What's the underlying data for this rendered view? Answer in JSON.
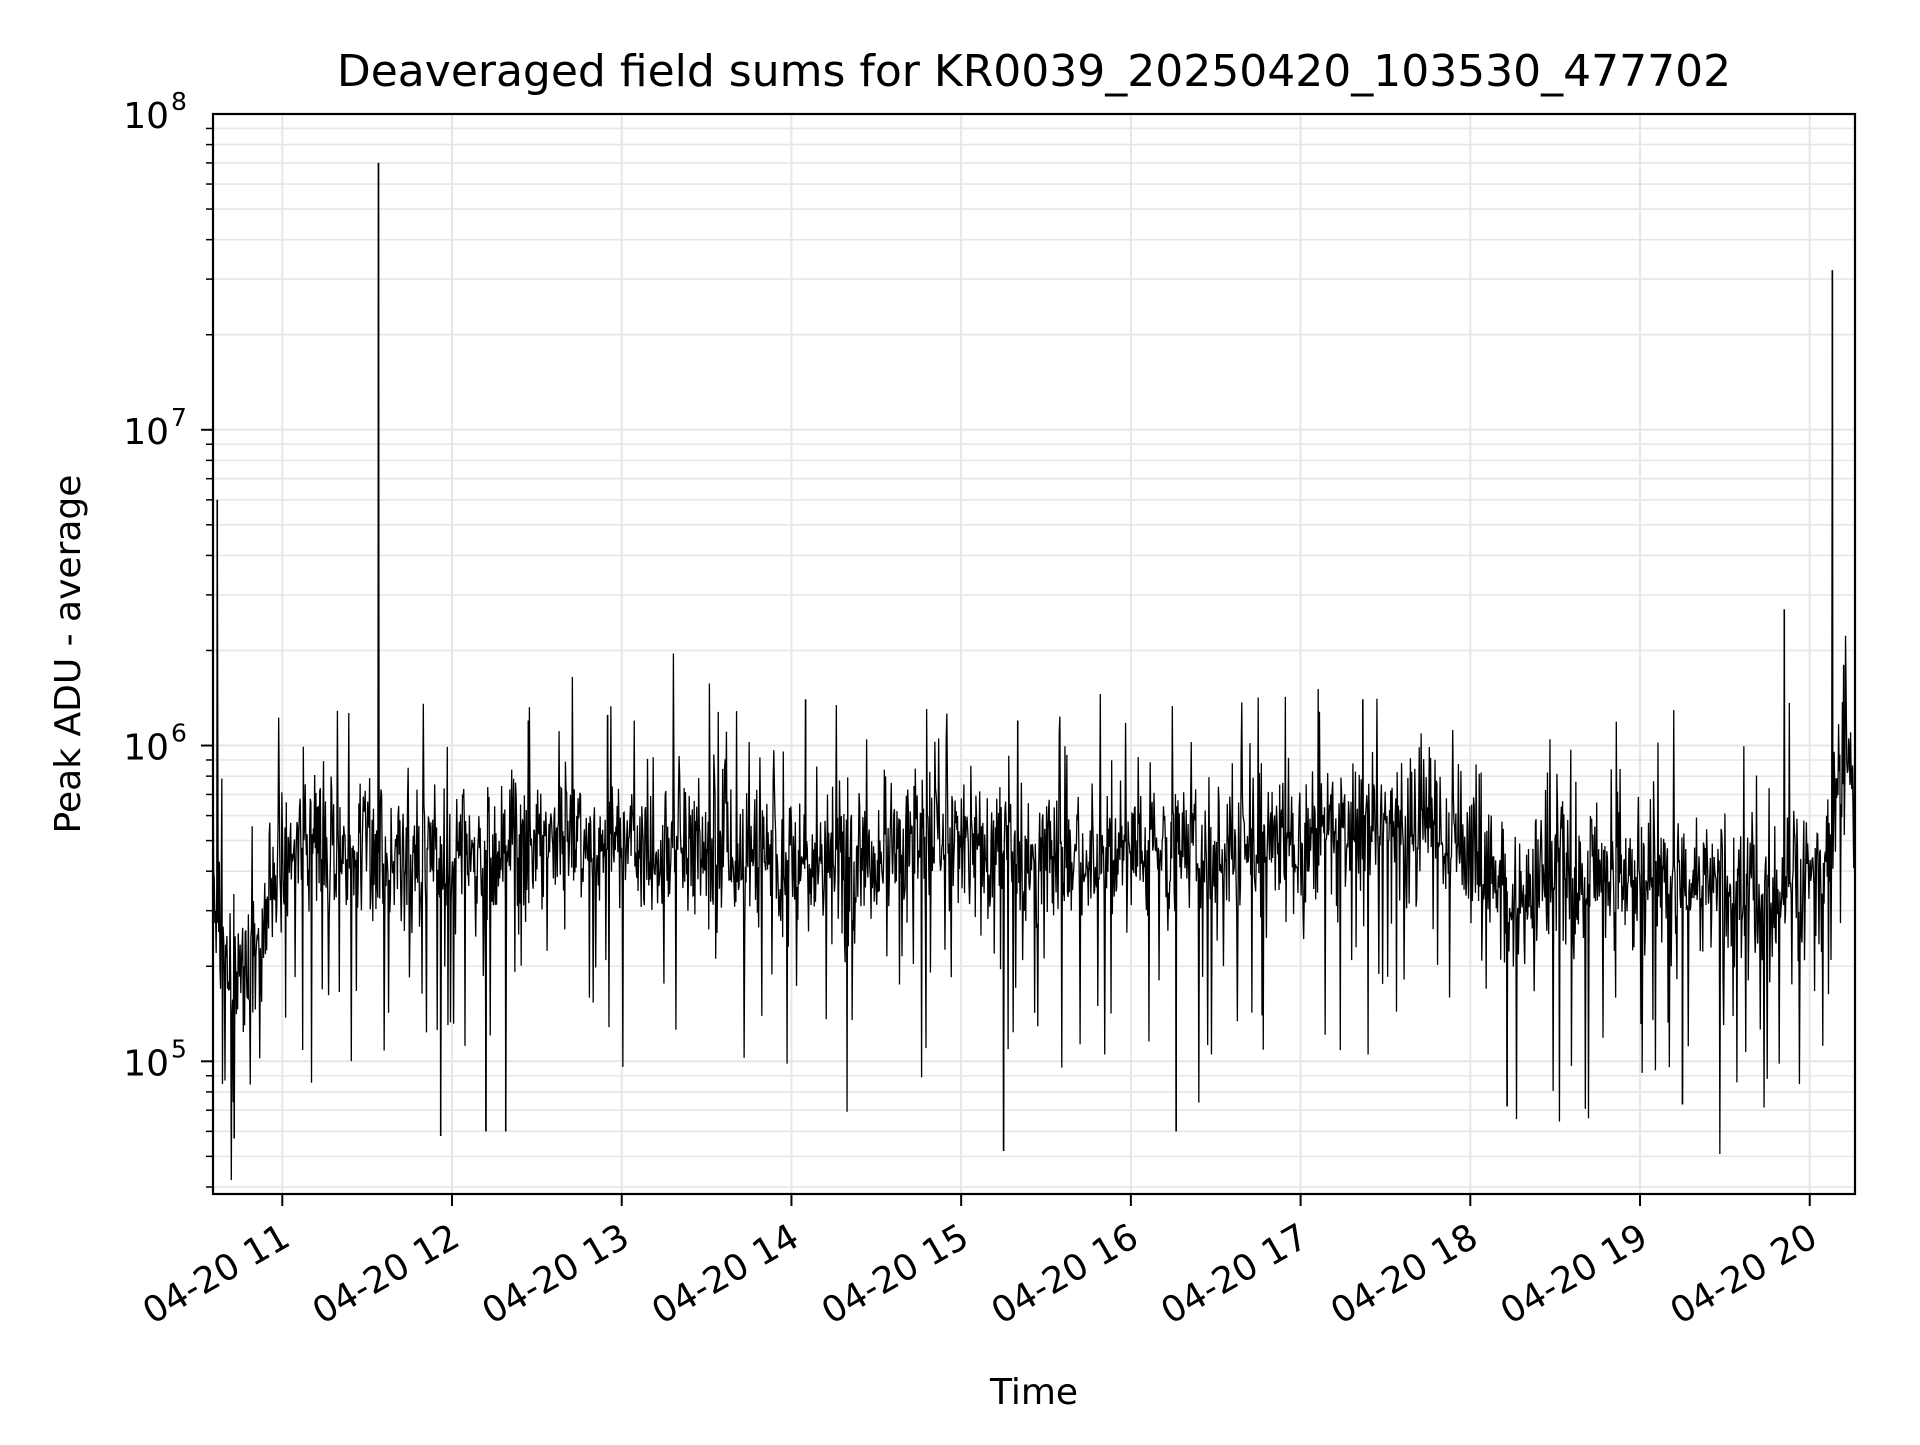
{
  "chart_data": {
    "type": "line",
    "title": "Deaveraged field sums for KR0039_20250420_103530_477702",
    "xlabel": "Time",
    "ylabel": "Peak ADU - average",
    "yscale": "log",
    "ylim": [
      38000,
      100000000
    ],
    "xlim": [
      "2025-04-20T10:35:30",
      "2025-04-20T20:16:00"
    ],
    "grid": true,
    "line_color": "#000000",
    "grid_color": "#e6e6e6",
    "x_ticks": [
      {
        "t": "2025-04-20T11:00:00",
        "label": "04-20 11"
      },
      {
        "t": "2025-04-20T12:00:00",
        "label": "04-20 12"
      },
      {
        "t": "2025-04-20T13:00:00",
        "label": "04-20 13"
      },
      {
        "t": "2025-04-20T14:00:00",
        "label": "04-20 14"
      },
      {
        "t": "2025-04-20T15:00:00",
        "label": "04-20 15"
      },
      {
        "t": "2025-04-20T16:00:00",
        "label": "04-20 16"
      },
      {
        "t": "2025-04-20T17:00:00",
        "label": "04-20 17"
      },
      {
        "t": "2025-04-20T18:00:00",
        "label": "04-20 18"
      },
      {
        "t": "2025-04-20T19:00:00",
        "label": "04-20 19"
      },
      {
        "t": "2025-04-20T20:00:00",
        "label": "04-20 20"
      }
    ],
    "y_ticks": [
      {
        "value": 100000,
        "base": "10",
        "exp": "5"
      },
      {
        "value": 1000000,
        "base": "10",
        "exp": "6"
      },
      {
        "value": 10000000,
        "base": "10",
        "exp": "7"
      },
      {
        "value": 100000000,
        "base": "10",
        "exp": "8"
      }
    ],
    "baseline": [
      [
        "2025-04-20T10:35:30",
        330000
      ],
      [
        "2025-04-20T10:40:00",
        190000
      ],
      [
        "2025-04-20T10:50:00",
        200000
      ],
      [
        "2025-04-20T10:57:00",
        360000
      ],
      [
        "2025-04-20T11:05:00",
        480000
      ],
      [
        "2025-04-20T11:30:00",
        460000
      ],
      [
        "2025-04-20T12:00:00",
        440000
      ],
      [
        "2025-04-20T12:30:00",
        510000
      ],
      [
        "2025-04-20T13:00:00",
        470000
      ],
      [
        "2025-04-20T13:30:00",
        440000
      ],
      [
        "2025-04-20T14:00:00",
        430000
      ],
      [
        "2025-04-20T14:30:00",
        450000
      ],
      [
        "2025-04-20T15:00:00",
        490000
      ],
      [
        "2025-04-20T15:30:00",
        440000
      ],
      [
        "2025-04-20T16:00:00",
        450000
      ],
      [
        "2025-04-20T16:30:00",
        470000
      ],
      [
        "2025-04-20T17:00:00",
        480000
      ],
      [
        "2025-04-20T17:30:00",
        560000
      ],
      [
        "2025-04-20T17:55:00",
        520000
      ],
      [
        "2025-04-20T18:15:00",
        330000
      ],
      [
        "2025-04-20T18:30:00",
        380000
      ],
      [
        "2025-04-20T19:00:00",
        370000
      ],
      [
        "2025-04-20T19:30:00",
        330000
      ],
      [
        "2025-04-20T19:45:00",
        320000
      ],
      [
        "2025-04-20T20:05:00",
        380000
      ],
      [
        "2025-04-20T20:12:00",
        900000
      ],
      [
        "2025-04-20T20:16:00",
        700000
      ]
    ],
    "spikes": [
      [
        "2025-04-20T10:37:00",
        6000000
      ],
      [
        "2025-04-20T11:34:00",
        70000000
      ],
      [
        "2025-04-20T12:27:00",
        1200000
      ],
      [
        "2025-04-20T12:55:00",
        1250000
      ],
      [
        "2025-04-20T14:05:00",
        1400000
      ],
      [
        "2025-04-20T15:20:00",
        1200000
      ],
      [
        "2025-04-20T17:22:00",
        1400000
      ],
      [
        "2025-04-20T19:51:00",
        2700000
      ],
      [
        "2025-04-20T20:08:00",
        32000000
      ],
      [
        "2025-04-20T20:12:00",
        1800000
      ]
    ],
    "dips": [
      [
        "2025-04-20T10:43:00",
        57000
      ],
      [
        "2025-04-20T11:56:00",
        58000
      ],
      [
        "2025-04-20T12:12:00",
        60000
      ],
      [
        "2025-04-20T12:19:00",
        60000
      ],
      [
        "2025-04-20T15:15:00",
        52000
      ],
      [
        "2025-04-20T16:16:00",
        60000
      ],
      [
        "2025-04-20T18:13:00",
        72000
      ],
      [
        "2025-04-20T19:15:00",
        73000
      ]
    ]
  }
}
